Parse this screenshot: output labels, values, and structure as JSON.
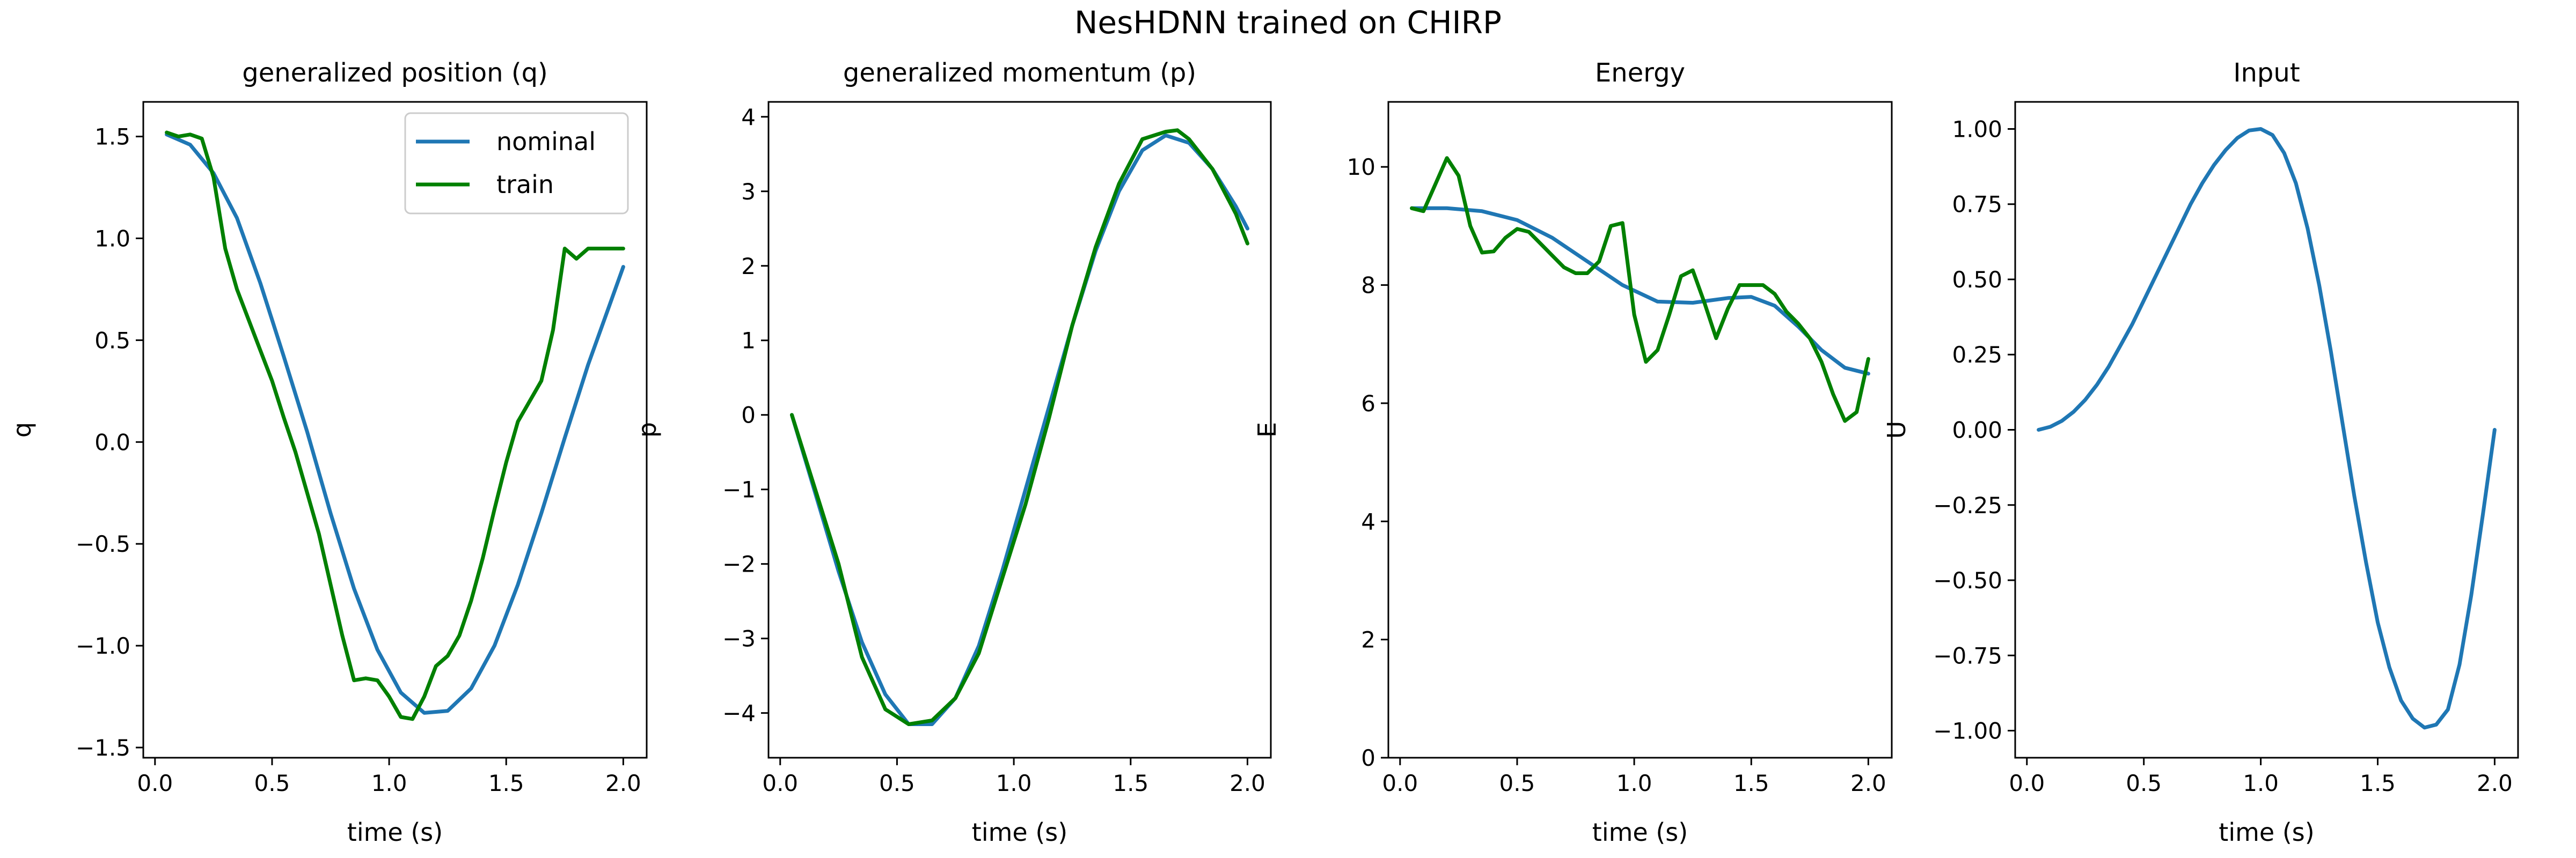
{
  "figure": {
    "suptitle": "NesHDNN trained on CHIRP"
  },
  "colors": {
    "nominal": "#1f77b4",
    "train": "#008000",
    "axes": "#000000",
    "background": "#ffffff"
  },
  "chart_data": [
    {
      "type": "line",
      "title": "generalized position (q)",
      "xlabel": "time (s)",
      "ylabel": "q",
      "xlim": [
        -0.05,
        2.1
      ],
      "ylim": [
        -1.55,
        1.67
      ],
      "xticks": [
        0.0,
        0.5,
        1.0,
        1.5,
        2.0
      ],
      "xtick_labels": [
        "0.0",
        "0.5",
        "1.0",
        "1.5",
        "2.0"
      ],
      "yticks": [
        1.5,
        1.0,
        0.5,
        0.0,
        -0.5,
        -1.0,
        -1.5
      ],
      "ytick_labels": [
        "1.5",
        "1.0",
        "0.5",
        "0.0",
        "−0.5",
        "−1.0",
        "−1.5"
      ],
      "grid": false,
      "legend": {
        "placement": "top-right",
        "entries": [
          "nominal",
          "train"
        ]
      },
      "series": [
        {
          "name": "nominal",
          "color": "#1f77b4",
          "x": [
            0.05,
            0.15,
            0.25,
            0.35,
            0.45,
            0.55,
            0.65,
            0.75,
            0.85,
            0.95,
            1.05,
            1.15,
            1.25,
            1.35,
            1.45,
            1.55,
            1.65,
            1.75,
            1.85,
            1.95,
            2.0
          ],
          "y": [
            1.51,
            1.46,
            1.32,
            1.1,
            0.78,
            0.42,
            0.05,
            -0.35,
            -0.72,
            -1.02,
            -1.23,
            -1.33,
            -1.32,
            -1.21,
            -1.0,
            -0.7,
            -0.35,
            0.02,
            0.38,
            0.7,
            0.86
          ]
        },
        {
          "name": "train",
          "color": "#008000",
          "x": [
            0.05,
            0.1,
            0.15,
            0.2,
            0.25,
            0.3,
            0.35,
            0.4,
            0.45,
            0.5,
            0.55,
            0.6,
            0.65,
            0.7,
            0.75,
            0.8,
            0.85,
            0.9,
            0.95,
            1.0,
            1.05,
            1.1,
            1.15,
            1.2,
            1.25,
            1.3,
            1.35,
            1.4,
            1.45,
            1.5,
            1.55,
            1.6,
            1.65,
            1.7,
            1.75,
            1.8,
            1.85,
            1.9,
            1.95,
            2.0
          ],
          "y": [
            1.52,
            1.5,
            1.51,
            1.49,
            1.3,
            0.95,
            0.75,
            0.6,
            0.45,
            0.3,
            0.12,
            -0.05,
            -0.25,
            -0.45,
            -0.7,
            -0.95,
            -1.17,
            -1.16,
            -1.17,
            -1.25,
            -1.35,
            -1.36,
            -1.25,
            -1.1,
            -1.05,
            -0.95,
            -0.78,
            -0.57,
            -0.33,
            -0.1,
            0.1,
            0.2,
            0.3,
            0.55,
            0.95,
            0.9,
            0.95,
            0.95,
            0.95,
            0.95
          ]
        }
      ]
    },
    {
      "type": "line",
      "title": "generalized momentum (p)",
      "xlabel": "time (s)",
      "ylabel": "p",
      "xlim": [
        -0.05,
        2.1
      ],
      "ylim": [
        -4.6,
        4.2
      ],
      "xticks": [
        0.0,
        0.5,
        1.0,
        1.5,
        2.0
      ],
      "xtick_labels": [
        "0.0",
        "0.5",
        "1.0",
        "1.5",
        "2.0"
      ],
      "yticks": [
        4,
        3,
        2,
        1,
        0,
        -1,
        -2,
        -3,
        -4
      ],
      "ytick_labels": [
        "4",
        "3",
        "2",
        "1",
        "0",
        "−1",
        "−2",
        "−3",
        "−4"
      ],
      "grid": false,
      "series": [
        {
          "name": "nominal",
          "color": "#1f77b4",
          "x": [
            0.05,
            0.15,
            0.25,
            0.35,
            0.45,
            0.55,
            0.65,
            0.75,
            0.85,
            0.95,
            1.05,
            1.15,
            1.25,
            1.35,
            1.45,
            1.55,
            1.65,
            1.75,
            1.85,
            1.95,
            2.0
          ],
          "y": [
            0.0,
            -1.05,
            -2.1,
            -3.05,
            -3.75,
            -4.15,
            -4.15,
            -3.8,
            -3.1,
            -2.1,
            -1.0,
            0.1,
            1.2,
            2.2,
            3.0,
            3.55,
            3.75,
            3.65,
            3.3,
            2.8,
            2.5
          ]
        },
        {
          "name": "train",
          "color": "#008000",
          "x": [
            0.05,
            0.15,
            0.25,
            0.35,
            0.45,
            0.55,
            0.65,
            0.75,
            0.85,
            0.95,
            1.05,
            1.15,
            1.25,
            1.35,
            1.45,
            1.55,
            1.65,
            1.7,
            1.75,
            1.85,
            1.95,
            2.0
          ],
          "y": [
            0.0,
            -1.0,
            -2.0,
            -3.25,
            -3.95,
            -4.15,
            -4.1,
            -3.8,
            -3.2,
            -2.2,
            -1.2,
            -0.05,
            1.2,
            2.25,
            3.1,
            3.7,
            3.8,
            3.82,
            3.7,
            3.3,
            2.7,
            2.3
          ]
        }
      ]
    },
    {
      "type": "line",
      "title": "Energy",
      "xlabel": "time (s)",
      "ylabel": "E",
      "xlim": [
        -0.05,
        2.1
      ],
      "ylim": [
        0,
        11.1
      ],
      "xticks": [
        0.0,
        0.5,
        1.0,
        1.5,
        2.0
      ],
      "xtick_labels": [
        "0.0",
        "0.5",
        "1.0",
        "1.5",
        "2.0"
      ],
      "yticks": [
        0,
        2,
        4,
        6,
        8,
        10
      ],
      "ytick_labels": [
        "0",
        "2",
        "4",
        "6",
        "8",
        "10"
      ],
      "grid": false,
      "series": [
        {
          "name": "nominal",
          "color": "#1f77b4",
          "x": [
            0.05,
            0.2,
            0.35,
            0.5,
            0.65,
            0.8,
            0.95,
            1.1,
            1.25,
            1.4,
            1.5,
            1.6,
            1.7,
            1.8,
            1.9,
            2.0
          ],
          "y": [
            9.3,
            9.3,
            9.25,
            9.1,
            8.8,
            8.4,
            8.0,
            7.72,
            7.7,
            7.78,
            7.8,
            7.65,
            7.3,
            6.9,
            6.6,
            6.5
          ]
        },
        {
          "name": "train",
          "color": "#008000",
          "x": [
            0.05,
            0.1,
            0.15,
            0.2,
            0.25,
            0.3,
            0.35,
            0.4,
            0.45,
            0.5,
            0.55,
            0.6,
            0.65,
            0.7,
            0.75,
            0.8,
            0.85,
            0.9,
            0.95,
            1.0,
            1.05,
            1.1,
            1.15,
            1.2,
            1.25,
            1.3,
            1.35,
            1.4,
            1.45,
            1.5,
            1.55,
            1.6,
            1.65,
            1.7,
            1.75,
            1.8,
            1.85,
            1.9,
            1.95,
            2.0
          ],
          "y": [
            9.3,
            9.25,
            9.7,
            10.15,
            9.85,
            9.0,
            8.55,
            8.57,
            8.8,
            8.95,
            8.9,
            8.7,
            8.5,
            8.3,
            8.2,
            8.2,
            8.4,
            9.0,
            9.05,
            7.5,
            6.7,
            6.9,
            7.5,
            8.15,
            8.25,
            7.7,
            7.1,
            7.6,
            8.0,
            8.0,
            8.0,
            7.85,
            7.55,
            7.35,
            7.1,
            6.7,
            6.15,
            5.7,
            5.85,
            6.75
          ]
        }
      ]
    },
    {
      "type": "line",
      "title": "Input",
      "xlabel": "time (s)",
      "ylabel": "U",
      "xlim": [
        -0.05,
        2.1
      ],
      "ylim": [
        -1.09,
        1.09
      ],
      "xticks": [
        0.0,
        0.5,
        1.0,
        1.5,
        2.0
      ],
      "xtick_labels": [
        "0.0",
        "0.5",
        "1.0",
        "1.5",
        "2.0"
      ],
      "yticks": [
        1.0,
        0.75,
        0.5,
        0.25,
        0.0,
        -0.25,
        -0.5,
        -0.75,
        -1.0
      ],
      "ytick_labels": [
        "1.00",
        "0.75",
        "0.50",
        "0.25",
        "0.00",
        "−0.25",
        "−0.50",
        "−0.75",
        "−1.00"
      ],
      "grid": false,
      "series": [
        {
          "name": "",
          "color": "#1f77b4",
          "x": [
            0.05,
            0.1,
            0.15,
            0.2,
            0.25,
            0.3,
            0.35,
            0.4,
            0.45,
            0.5,
            0.55,
            0.6,
            0.65,
            0.7,
            0.75,
            0.8,
            0.85,
            0.9,
            0.95,
            1.0,
            1.05,
            1.1,
            1.15,
            1.2,
            1.25,
            1.3,
            1.35,
            1.4,
            1.45,
            1.5,
            1.55,
            1.6,
            1.65,
            1.7,
            1.75,
            1.8,
            1.85,
            1.9,
            1.95,
            2.0
          ],
          "y": [
            0.0,
            0.01,
            0.03,
            0.06,
            0.1,
            0.15,
            0.21,
            0.28,
            0.35,
            0.43,
            0.51,
            0.59,
            0.67,
            0.75,
            0.82,
            0.88,
            0.93,
            0.97,
            0.995,
            1.0,
            0.98,
            0.92,
            0.82,
            0.67,
            0.48,
            0.26,
            0.02,
            -0.22,
            -0.44,
            -0.64,
            -0.79,
            -0.9,
            -0.96,
            -0.99,
            -0.98,
            -0.93,
            -0.78,
            -0.55,
            -0.28,
            0.0
          ]
        }
      ]
    }
  ]
}
